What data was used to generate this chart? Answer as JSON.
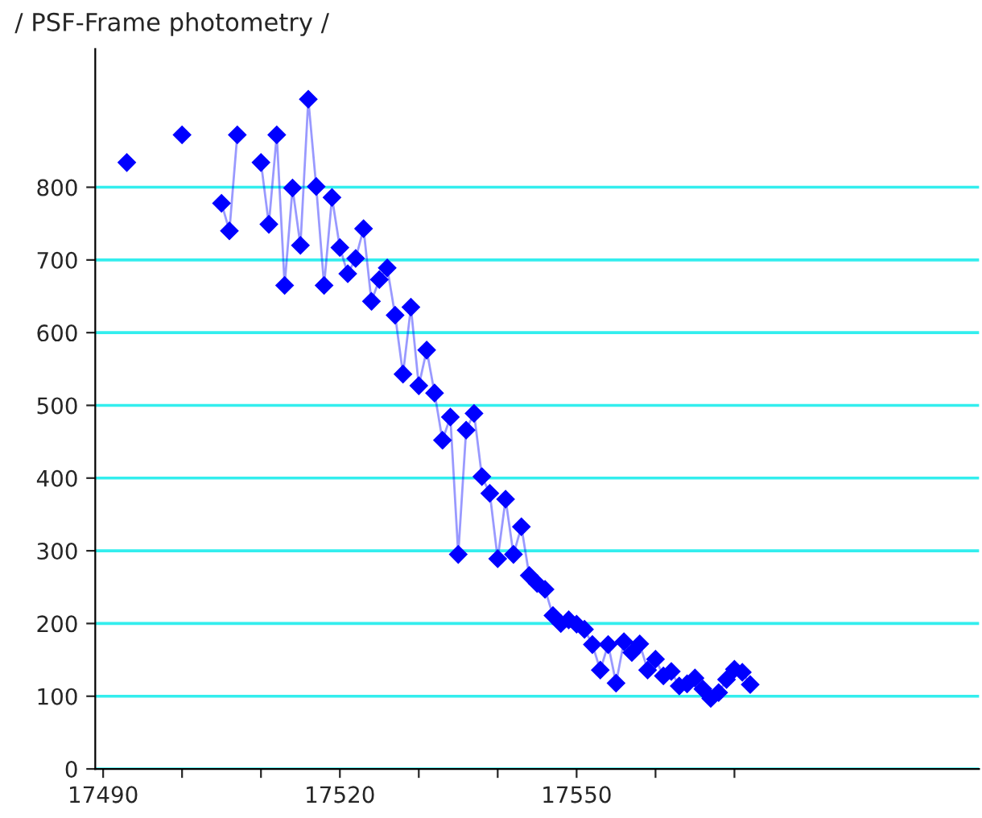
{
  "chart_data": {
    "type": "line",
    "title": "/ PSF-Frame photometry /",
    "x": [
      17493,
      17494,
      17500,
      17502,
      17505,
      17506,
      17507,
      17508,
      17510,
      17511,
      17512,
      17513,
      17514,
      17515,
      17516,
      17517,
      17518,
      17519,
      17520,
      17521,
      17522,
      17523,
      17524,
      17525,
      17526,
      17527,
      17528,
      17529,
      17530,
      17531,
      17532,
      17533,
      17534,
      17535,
      17536,
      17537,
      17538,
      17539,
      17540,
      17541,
      17542,
      17543,
      17544,
      17545,
      17546,
      17547,
      17548,
      17549,
      17550,
      17551,
      17552,
      17553,
      17554,
      17555,
      17556,
      17557,
      17558,
      17559,
      17560,
      17561,
      17562,
      17563,
      17564,
      17565,
      17566,
      17567,
      17568,
      17569,
      17570,
      17571,
      17572
    ],
    "series": [
      {
        "color": "#0000ff",
        "values": [
          834,
          null,
          872,
          null,
          778,
          740,
          872,
          null,
          834,
          749,
          872,
          665,
          799,
          720,
          921,
          801,
          665,
          786,
          717,
          681,
          702,
          743,
          643,
          673,
          689,
          624,
          543,
          635,
          527,
          576,
          517,
          452,
          484,
          295,
          466,
          489,
          402,
          379,
          289,
          371,
          295,
          333,
          266,
          255,
          247,
          211,
          200,
          205,
          199,
          192,
          171,
          136,
          171,
          118,
          175,
          160,
          172,
          136,
          151,
          128,
          134,
          114,
          117,
          125,
          110,
          97,
          105,
          123,
          137,
          133,
          116
        ]
      }
    ],
    "xlim": [
      17489,
      17601
    ],
    "ylim": [
      0,
      990
    ],
    "xticks": [
      17490,
      {
        "value": 17500,
        "label": null
      },
      {
        "value": 17510,
        "label": null
      },
      17520,
      {
        "value": 17530,
        "label": null
      },
      {
        "value": 17540,
        "label": null
      },
      17550,
      {
        "value": 17560,
        "label": null
      },
      {
        "value": 17570,
        "label": null
      }
    ],
    "yticks": [
      0,
      100,
      200,
      300,
      400,
      500,
      600,
      700,
      800
    ],
    "grid": "y",
    "marker": "diamond",
    "line_style": "solid",
    "legend": false
  }
}
